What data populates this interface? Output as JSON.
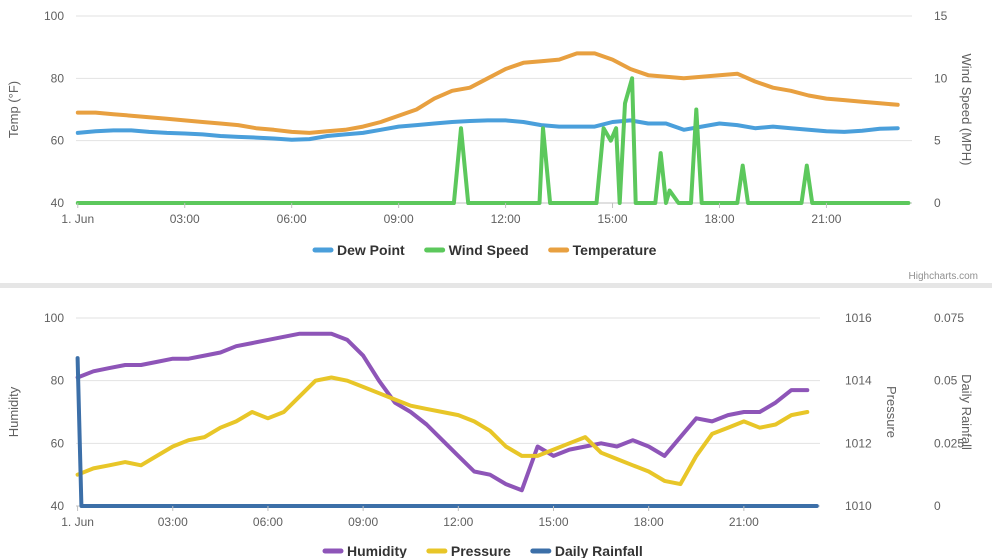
{
  "chart_data": [
    {
      "type": "line",
      "credit": "Highcharts.com",
      "x_unit": "hours since midnight, 1 Jun",
      "x_range": [
        -0.05,
        23.4
      ],
      "x_ticks": [
        {
          "value": 0,
          "label": "1. Jun"
        },
        {
          "value": 3,
          "label": "03:00"
        },
        {
          "value": 6,
          "label": "06:00"
        },
        {
          "value": 9,
          "label": "09:00"
        },
        {
          "value": 12,
          "label": "12:00"
        },
        {
          "value": 15,
          "label": "15:00"
        },
        {
          "value": 18,
          "label": "18:00"
        },
        {
          "value": 21,
          "label": "21:00"
        }
      ],
      "y_axes": [
        {
          "id": "temp",
          "title": "Temp (°F)",
          "side": "left",
          "min": 40,
          "max": 100,
          "ticks": [
            {
              "value": 40,
              "label": "40"
            },
            {
              "value": 60,
              "label": "60"
            },
            {
              "value": 80,
              "label": "80"
            },
            {
              "value": 100,
              "label": "100"
            }
          ]
        },
        {
          "id": "wind",
          "title": "Wind Speed (MPH)",
          "side": "right",
          "min": 0,
          "max": 15,
          "ticks": [
            {
              "value": 0,
              "label": "0"
            },
            {
              "value": 5,
              "label": "5"
            },
            {
              "value": 10,
              "label": "10"
            },
            {
              "value": 15,
              "label": "15"
            }
          ]
        }
      ],
      "legend": [
        "Dew Point",
        "Wind Speed",
        "Temperature"
      ],
      "series": [
        {
          "name": "Dew Point",
          "axis": "temp",
          "color": "#4a9fdb",
          "x": [
            0,
            0.5,
            1,
            1.5,
            2,
            2.5,
            3,
            3.5,
            4,
            4.5,
            5,
            5.5,
            6,
            6.5,
            7,
            7.5,
            8,
            8.5,
            9,
            9.5,
            10,
            10.5,
            11,
            11.5,
            12,
            12.5,
            13,
            13.5,
            14,
            14.5,
            15,
            15.5,
            16,
            16.5,
            17,
            17.5,
            18,
            18.5,
            19,
            19.5,
            20,
            20.5,
            21,
            21.5,
            22,
            22.5,
            23
          ],
          "values": [
            62.5,
            63,
            63.3,
            63.3,
            62.8,
            62.5,
            62.3,
            62,
            61.5,
            61.2,
            61,
            60.7,
            60.3,
            60.5,
            61.5,
            62,
            62.5,
            63.5,
            64.5,
            65,
            65.5,
            66,
            66.3,
            66.5,
            66.5,
            66,
            65,
            64.5,
            64.5,
            64.5,
            66,
            66.5,
            65.5,
            65.5,
            63.5,
            64.5,
            65.5,
            65,
            64,
            64.5,
            64,
            63.5,
            63,
            62.8,
            63.2,
            63.8,
            64
          ]
        },
        {
          "name": "Wind Speed",
          "axis": "wind",
          "color": "#5cc85c",
          "x": [
            0,
            10.55,
            10.75,
            10.95,
            12.95,
            13.05,
            13.25,
            14.55,
            14.75,
            14.95,
            15.1,
            15.2,
            15.35,
            15.55,
            15.65,
            16.1,
            16.2,
            16.35,
            16.5,
            16.6,
            16.85,
            17.2,
            17.35,
            17.5,
            18.5,
            18.65,
            18.8,
            20.3,
            20.45,
            20.6,
            23.3
          ],
          "values": [
            0,
            0,
            6,
            0,
            0,
            6,
            0,
            0,
            6,
            5,
            6,
            0,
            8,
            10,
            0,
            0,
            0,
            4,
            0,
            1,
            0,
            0,
            7.5,
            0,
            0,
            3,
            0,
            0,
            3,
            0,
            0
          ]
        },
        {
          "name": "Temperature",
          "axis": "temp",
          "color": "#e8a040",
          "x": [
            0,
            0.5,
            1,
            1.5,
            2,
            2.5,
            3,
            3.5,
            4,
            4.5,
            5,
            5.5,
            6,
            6.5,
            7,
            7.5,
            8,
            8.5,
            9,
            9.5,
            10,
            10.5,
            11,
            11.5,
            12,
            12.5,
            13,
            13.5,
            14,
            14.5,
            15,
            15.5,
            16,
            16.5,
            17,
            17.5,
            18,
            18.5,
            19,
            19.5,
            20,
            20.5,
            21,
            21.5,
            22,
            22.5,
            23
          ],
          "values": [
            69,
            69,
            68.5,
            68,
            67.5,
            67,
            66.5,
            66,
            65.5,
            65,
            64,
            63.5,
            62.8,
            62.5,
            63,
            63.5,
            64.5,
            66,
            68,
            70,
            73.5,
            76,
            77,
            80,
            83,
            85,
            85.5,
            86,
            88,
            88,
            86,
            83,
            81,
            80.5,
            80,
            80.5,
            81,
            81.5,
            79,
            77,
            76,
            74.5,
            73.5,
            73,
            72.5,
            72,
            71.5
          ]
        }
      ]
    },
    {
      "type": "line",
      "x_unit": "hours since midnight, 1 Jun",
      "x_range": [
        -0.05,
        23.4
      ],
      "x_ticks": [
        {
          "value": 0,
          "label": "1. Jun"
        },
        {
          "value": 3,
          "label": "03:00"
        },
        {
          "value": 6,
          "label": "06:00"
        },
        {
          "value": 9,
          "label": "09:00"
        },
        {
          "value": 12,
          "label": "12:00"
        },
        {
          "value": 15,
          "label": "15:00"
        },
        {
          "value": 18,
          "label": "18:00"
        },
        {
          "value": 21,
          "label": "21:00"
        }
      ],
      "y_axes": [
        {
          "id": "hum",
          "title": "Humidity",
          "side": "left",
          "min": 40,
          "max": 100,
          "ticks": [
            {
              "value": 40,
              "label": "40"
            },
            {
              "value": 60,
              "label": "60"
            },
            {
              "value": 80,
              "label": "80"
            },
            {
              "value": 100,
              "label": "100"
            }
          ]
        },
        {
          "id": "press",
          "title": "Pressure",
          "side": "right",
          "min": 1010,
          "max": 1016,
          "ticks": [
            {
              "value": 1010,
              "label": "1010"
            },
            {
              "value": 1012,
              "label": "1012"
            },
            {
              "value": 1014,
              "label": "1014"
            },
            {
              "value": 1016,
              "label": "1016"
            }
          ]
        },
        {
          "id": "rain",
          "title": "Daily Rainfall",
          "side": "right2",
          "min": 0,
          "max": 0.075,
          "ticks": [
            {
              "value": 0,
              "label": "0"
            },
            {
              "value": 0.025,
              "label": "0.025"
            },
            {
              "value": 0.05,
              "label": "0.05"
            },
            {
              "value": 0.075,
              "label": "0.075"
            }
          ]
        }
      ],
      "legend": [
        "Humidity",
        "Pressure",
        "Daily Rainfall"
      ],
      "series": [
        {
          "name": "Humidity",
          "axis": "hum",
          "color": "#8e55b8",
          "x": [
            0,
            0.5,
            1,
            1.5,
            2,
            2.5,
            3,
            3.5,
            4,
            4.5,
            5,
            5.5,
            6,
            6.5,
            7,
            7.5,
            8,
            8.5,
            9,
            9.5,
            10,
            10.5,
            11,
            11.5,
            12,
            12.5,
            13,
            13.5,
            14,
            14.5,
            15,
            15.5,
            16,
            16.5,
            17,
            17.5,
            18,
            18.5,
            19,
            19.5,
            20,
            20.5,
            21,
            21.5,
            22,
            22.5,
            23
          ],
          "values": [
            81,
            83,
            84,
            85,
            85,
            86,
            87,
            87,
            88,
            89,
            91,
            92,
            93,
            94,
            95,
            95,
            95,
            93,
            88,
            80,
            73,
            70,
            66,
            61,
            56,
            51,
            50,
            47,
            45,
            59,
            56,
            58,
            59,
            60,
            59,
            61,
            59,
            56,
            62,
            68,
            67,
            69,
            70,
            70,
            73,
            77,
            77
          ]
        },
        {
          "name": "Pressure",
          "axis": "press",
          "color": "#e8c628",
          "x": [
            0,
            0.5,
            1,
            1.5,
            2,
            2.5,
            3,
            3.5,
            4,
            4.5,
            5,
            5.5,
            6,
            6.5,
            7,
            7.5,
            8,
            8.5,
            9,
            9.5,
            10,
            10.5,
            11,
            11.5,
            12,
            12.5,
            13,
            13.5,
            14,
            14.5,
            15,
            15.5,
            16,
            16.5,
            17,
            17.5,
            18,
            18.5,
            19,
            19.5,
            20,
            20.5,
            21,
            21.5,
            22,
            22.5,
            23
          ],
          "values": [
            1011,
            1011.2,
            1011.3,
            1011.4,
            1011.3,
            1011.6,
            1011.9,
            1012.1,
            1012.2,
            1012.5,
            1012.7,
            1013,
            1012.8,
            1013,
            1013.5,
            1014,
            1014.1,
            1014,
            1013.8,
            1013.6,
            1013.4,
            1013.2,
            1013.1,
            1013,
            1012.9,
            1012.7,
            1012.4,
            1011.9,
            1011.6,
            1011.6,
            1011.8,
            1012,
            1012.2,
            1011.7,
            1011.5,
            1011.3,
            1011.1,
            1010.8,
            1010.7,
            1011.6,
            1012.3,
            1012.5,
            1012.7,
            1012.5,
            1012.6,
            1012.9,
            1013
          ]
        },
        {
          "name": "Daily Rainfall",
          "axis": "rain",
          "color": "#3c6fa8",
          "x": [
            0,
            0.12,
            23.3
          ],
          "values": [
            0.059,
            0,
            0
          ]
        }
      ]
    }
  ]
}
